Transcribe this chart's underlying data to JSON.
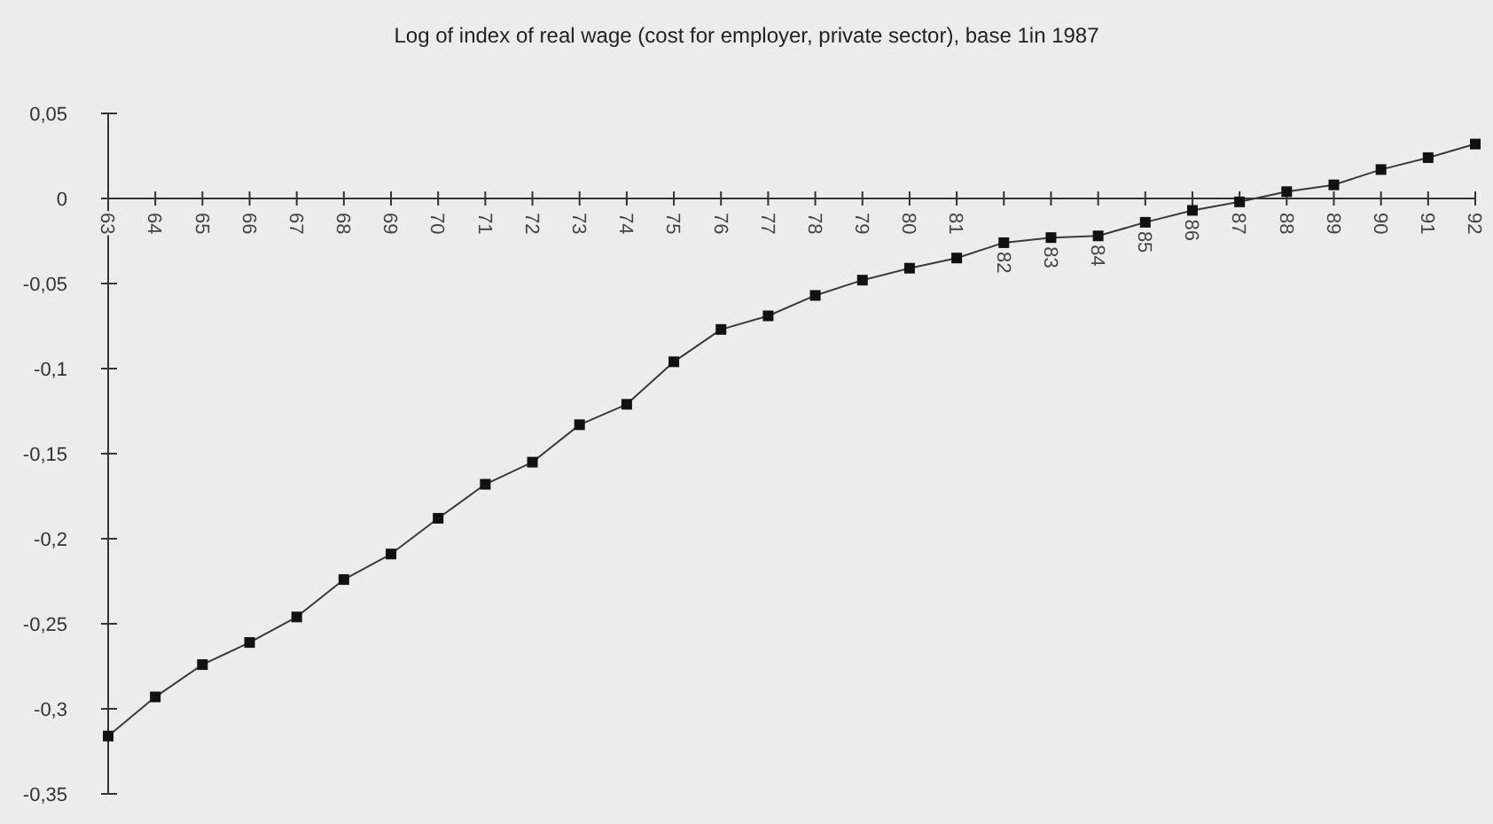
{
  "chart_data": {
    "type": "line",
    "title": "Log of index of real wage (cost for employer, private sector), base 1in 1987",
    "categories": [
      "63",
      "64",
      "65",
      "66",
      "67",
      "68",
      "69",
      "70",
      "71",
      "72",
      "73",
      "74",
      "75",
      "76",
      "77",
      "78",
      "79",
      "80",
      "81",
      "82",
      "83",
      "84",
      "85",
      "86",
      "87",
      "88",
      "89",
      "90",
      "91",
      "92"
    ],
    "series": [
      {
        "color": "#3a3a3a",
        "values": [
          -0.316,
          -0.293,
          -0.274,
          -0.261,
          -0.246,
          -0.224,
          -0.209,
          -0.188,
          -0.168,
          -0.155,
          -0.133,
          -0.121,
          -0.096,
          -0.077,
          -0.069,
          -0.057,
          -0.048,
          -0.041,
          -0.035,
          -0.026,
          -0.023,
          -0.022,
          -0.014,
          -0.007,
          -0.002,
          0.004,
          0.008,
          0.017,
          0.024,
          0.032
        ]
      }
    ],
    "ylim": [
      -0.35,
      0.05
    ],
    "yticks": [
      {
        "value": 0.05,
        "label": "0,05"
      },
      0,
      {
        "value": -0.05,
        "label": "-0,05"
      },
      {
        "value": -0.1,
        "label": "-0,1"
      },
      {
        "value": -0.15,
        "label": "-0,15"
      },
      {
        "value": -0.2,
        "label": "-0,2"
      },
      {
        "value": -0.25,
        "label": "-0,25"
      },
      {
        "value": -0.3,
        "label": "-0,3"
      },
      {
        "value": -0.35,
        "label": "-0,35"
      }
    ],
    "marker": "square",
    "line_style": "solid",
    "grid": false
  }
}
